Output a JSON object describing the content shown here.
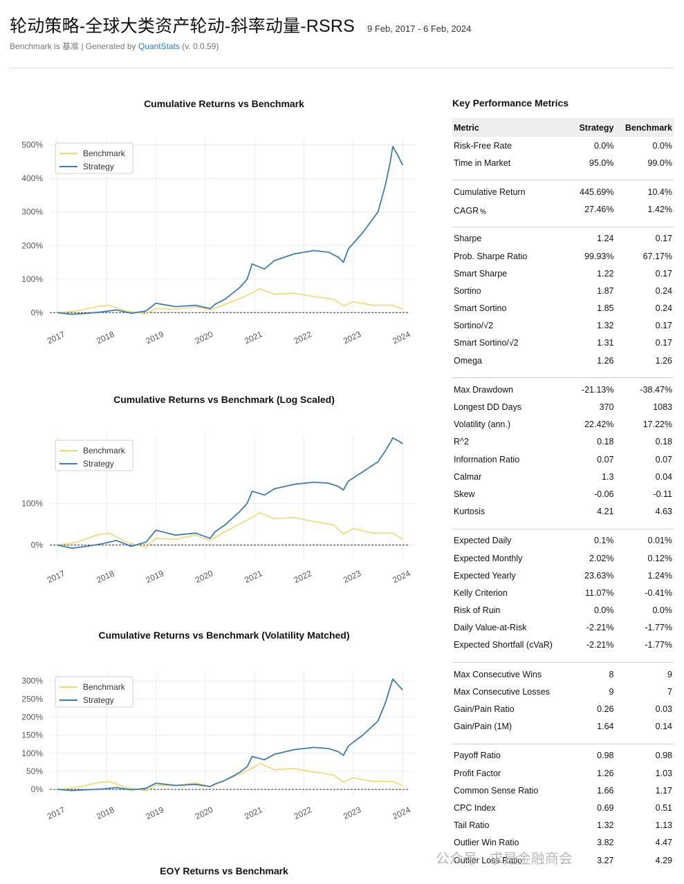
{
  "header": {
    "title": "轮动策略-全球大类资产轮动-斜率动量-RSRS",
    "date_range": "9 Feb, 2017 - 6 Feb, 2024",
    "subtitle_prefix": "Benchmark is 基准 | Generated by ",
    "subtitle_link": "QuantStats",
    "subtitle_suffix": " (v. 0.0.59)"
  },
  "colors": {
    "benchmark": "#f5d76e",
    "strategy": "#3d7ab8"
  },
  "chart_data": [
    {
      "type": "line",
      "title": "Cumulative Returns vs Benchmark",
      "x_ticks": [
        "2017",
        "2018",
        "2019",
        "2020",
        "2021",
        "2022",
        "2023",
        "2024"
      ],
      "y_ticks": [
        "0%",
        "100%",
        "200%",
        "300%",
        "400%",
        "500%"
      ],
      "y_tick_values": [
        0,
        100,
        200,
        300,
        400,
        500
      ],
      "ylim": [
        -20,
        520
      ],
      "legend": [
        "Benchmark",
        "Strategy"
      ],
      "grid": true,
      "series": [
        {
          "name": "Benchmark",
          "points": [
            [
              2017.11,
              0
            ],
            [
              2017.5,
              5
            ],
            [
              2017.9,
              18
            ],
            [
              2018.15,
              22
            ],
            [
              2018.5,
              5
            ],
            [
              2018.9,
              -4
            ],
            [
              2019.1,
              12
            ],
            [
              2019.5,
              10
            ],
            [
              2019.9,
              18
            ],
            [
              2020.2,
              8
            ],
            [
              2020.5,
              25
            ],
            [
              2020.8,
              42
            ],
            [
              2021.1,
              62
            ],
            [
              2021.2,
              72
            ],
            [
              2021.5,
              55
            ],
            [
              2021.9,
              58
            ],
            [
              2022.3,
              48
            ],
            [
              2022.7,
              40
            ],
            [
              2022.9,
              20
            ],
            [
              2023.1,
              32
            ],
            [
              2023.5,
              22
            ],
            [
              2023.9,
              22
            ],
            [
              2024.1,
              10
            ]
          ]
        },
        {
          "name": "Strategy",
          "points": [
            [
              2017.11,
              0
            ],
            [
              2017.4,
              -5
            ],
            [
              2017.7,
              -2
            ],
            [
              2018.0,
              2
            ],
            [
              2018.3,
              8
            ],
            [
              2018.6,
              -2
            ],
            [
              2018.9,
              5
            ],
            [
              2019.1,
              28
            ],
            [
              2019.5,
              18
            ],
            [
              2019.9,
              22
            ],
            [
              2020.2,
              12
            ],
            [
              2020.3,
              25
            ],
            [
              2020.5,
              40
            ],
            [
              2020.8,
              75
            ],
            [
              2020.95,
              100
            ],
            [
              2021.05,
              145
            ],
            [
              2021.3,
              130
            ],
            [
              2021.5,
              155
            ],
            [
              2021.9,
              175
            ],
            [
              2022.3,
              185
            ],
            [
              2022.6,
              180
            ],
            [
              2022.8,
              165
            ],
            [
              2022.9,
              150
            ],
            [
              2023.0,
              190
            ],
            [
              2023.3,
              240
            ],
            [
              2023.6,
              300
            ],
            [
              2023.75,
              380
            ],
            [
              2023.85,
              450
            ],
            [
              2023.9,
              495
            ],
            [
              2024.0,
              470
            ],
            [
              2024.1,
              440
            ]
          ]
        }
      ]
    },
    {
      "type": "line",
      "title": "Cumulative Returns vs Benchmark (Log Scaled)",
      "scale": "log",
      "x_ticks": [
        "2017",
        "2018",
        "2019",
        "2020",
        "2021",
        "2022",
        "2023",
        "2024"
      ],
      "y_ticks": [
        "0%",
        "100%"
      ],
      "y_tick_values": [
        0,
        100
      ],
      "ylim": [
        -20,
        520
      ],
      "legend": [
        "Benchmark",
        "Strategy"
      ],
      "grid": true,
      "series": [
        {
          "name": "Benchmark",
          "points": [
            [
              2017.11,
              0
            ],
            [
              2017.5,
              5
            ],
            [
              2017.9,
              18
            ],
            [
              2018.15,
              22
            ],
            [
              2018.5,
              5
            ],
            [
              2018.9,
              -4
            ],
            [
              2019.1,
              12
            ],
            [
              2019.5,
              10
            ],
            [
              2019.9,
              18
            ],
            [
              2020.2,
              8
            ],
            [
              2020.5,
              25
            ],
            [
              2020.8,
              42
            ],
            [
              2021.1,
              62
            ],
            [
              2021.2,
              72
            ],
            [
              2021.5,
              55
            ],
            [
              2021.9,
              58
            ],
            [
              2022.3,
              48
            ],
            [
              2022.7,
              40
            ],
            [
              2022.9,
              20
            ],
            [
              2023.1,
              32
            ],
            [
              2023.5,
              22
            ],
            [
              2023.9,
              22
            ],
            [
              2024.1,
              10
            ]
          ]
        },
        {
          "name": "Strategy",
          "points": [
            [
              2017.11,
              0
            ],
            [
              2017.4,
              -5
            ],
            [
              2017.7,
              -2
            ],
            [
              2018.0,
              2
            ],
            [
              2018.3,
              8
            ],
            [
              2018.6,
              -2
            ],
            [
              2018.9,
              5
            ],
            [
              2019.1,
              28
            ],
            [
              2019.5,
              18
            ],
            [
              2019.9,
              22
            ],
            [
              2020.2,
              12
            ],
            [
              2020.3,
              25
            ],
            [
              2020.5,
              40
            ],
            [
              2020.8,
              75
            ],
            [
              2020.95,
              100
            ],
            [
              2021.05,
              145
            ],
            [
              2021.3,
              130
            ],
            [
              2021.5,
              155
            ],
            [
              2021.9,
              175
            ],
            [
              2022.3,
              185
            ],
            [
              2022.6,
              180
            ],
            [
              2022.8,
              165
            ],
            [
              2022.9,
              150
            ],
            [
              2023.0,
              190
            ],
            [
              2023.3,
              240
            ],
            [
              2023.6,
              300
            ],
            [
              2023.75,
              380
            ],
            [
              2023.85,
              450
            ],
            [
              2023.9,
              495
            ],
            [
              2024.0,
              470
            ],
            [
              2024.1,
              440
            ]
          ]
        }
      ]
    },
    {
      "type": "line",
      "title": "Cumulative Returns vs Benchmark (Volatility Matched)",
      "x_ticks": [
        "2017",
        "2018",
        "2019",
        "2020",
        "2021",
        "2022",
        "2023",
        "2024"
      ],
      "y_ticks": [
        "0%",
        "50%",
        "100%",
        "150%",
        "200%",
        "250%",
        "300%"
      ],
      "y_tick_values": [
        0,
        50,
        100,
        150,
        200,
        250,
        300
      ],
      "ylim": [
        -15,
        325
      ],
      "legend": [
        "Benchmark",
        "Strategy"
      ],
      "grid": true,
      "series": [
        {
          "name": "Benchmark",
          "points": [
            [
              2017.11,
              0
            ],
            [
              2017.5,
              5
            ],
            [
              2017.9,
              18
            ],
            [
              2018.15,
              22
            ],
            [
              2018.5,
              5
            ],
            [
              2018.9,
              -4
            ],
            [
              2019.1,
              12
            ],
            [
              2019.5,
              10
            ],
            [
              2019.9,
              18
            ],
            [
              2020.2,
              8
            ],
            [
              2020.5,
              25
            ],
            [
              2020.8,
              42
            ],
            [
              2021.1,
              62
            ],
            [
              2021.2,
              72
            ],
            [
              2021.5,
              55
            ],
            [
              2021.9,
              58
            ],
            [
              2022.3,
              48
            ],
            [
              2022.7,
              40
            ],
            [
              2022.9,
              20
            ],
            [
              2023.1,
              32
            ],
            [
              2023.5,
              22
            ],
            [
              2023.9,
              22
            ],
            [
              2024.1,
              10
            ]
          ]
        },
        {
          "name": "Strategy",
          "points": [
            [
              2017.11,
              0
            ],
            [
              2017.4,
              -3
            ],
            [
              2017.7,
              -1
            ],
            [
              2018.0,
              1
            ],
            [
              2018.3,
              5
            ],
            [
              2018.6,
              -1
            ],
            [
              2018.9,
              3
            ],
            [
              2019.1,
              17
            ],
            [
              2019.5,
              11
            ],
            [
              2019.9,
              14
            ],
            [
              2020.2,
              8
            ],
            [
              2020.3,
              15
            ],
            [
              2020.5,
              25
            ],
            [
              2020.8,
              47
            ],
            [
              2020.95,
              63
            ],
            [
              2021.05,
              91
            ],
            [
              2021.3,
              82
            ],
            [
              2021.5,
              97
            ],
            [
              2021.9,
              110
            ],
            [
              2022.3,
              116
            ],
            [
              2022.6,
              113
            ],
            [
              2022.8,
              104
            ],
            [
              2022.9,
              94
            ],
            [
              2023.0,
              120
            ],
            [
              2023.3,
              151
            ],
            [
              2023.6,
              189
            ],
            [
              2023.75,
              239
            ],
            [
              2023.85,
              283
            ],
            [
              2023.9,
              305
            ],
            [
              2024.0,
              290
            ],
            [
              2024.1,
              275
            ]
          ]
        }
      ]
    }
  ],
  "eoy_title": "EOY Returns  vs Benchmark",
  "metrics": {
    "title": "Key Performance Metrics",
    "headers": [
      "Metric",
      "Strategy",
      "Benchmark"
    ],
    "groups": [
      [
        [
          "Risk-Free Rate",
          "0.0%",
          "0.0%"
        ],
        [
          "Time in Market",
          "95.0%",
          "99.0%"
        ]
      ],
      [
        [
          "Cumulative Return",
          "445.69%",
          "10.4%"
        ],
        [
          "CAGR﹪",
          "27.46%",
          "1.42%"
        ]
      ],
      [
        [
          "Sharpe",
          "1.24",
          "0.17"
        ],
        [
          "Prob. Sharpe Ratio",
          "99.93%",
          "67.17%"
        ],
        [
          "Smart Sharpe",
          "1.22",
          "0.17"
        ],
        [
          "Sortino",
          "1.87",
          "0.24"
        ],
        [
          "Smart Sortino",
          "1.85",
          "0.24"
        ],
        [
          "Sortino/√2",
          "1.32",
          "0.17"
        ],
        [
          "Smart Sortino/√2",
          "1.31",
          "0.17"
        ],
        [
          "Omega",
          "1.26",
          "1.26"
        ]
      ],
      [
        [
          "Max Drawdown",
          "-21.13%",
          "-38.47%"
        ],
        [
          "Longest DD Days",
          "370",
          "1083"
        ],
        [
          "Volatility (ann.)",
          "22.42%",
          "17.22%"
        ],
        [
          "R^2",
          "0.18",
          "0.18"
        ],
        [
          "Information Ratio",
          "0.07",
          "0.07"
        ],
        [
          "Calmar",
          "1.3",
          "0.04"
        ],
        [
          "Skew",
          "-0.06",
          "-0.11"
        ],
        [
          "Kurtosis",
          "4.21",
          "4.63"
        ]
      ],
      [
        [
          "Expected Daily",
          "0.1%",
          "0.01%"
        ],
        [
          "Expected Monthly",
          "2.02%",
          "0.12%"
        ],
        [
          "Expected Yearly",
          "23.63%",
          "1.24%"
        ],
        [
          "Kelly Criterion",
          "11.07%",
          "-0.41%"
        ],
        [
          "Risk of Ruin",
          "0.0%",
          "0.0%"
        ],
        [
          "Daily Value-at-Risk",
          "-2.21%",
          "-1.77%"
        ],
        [
          "Expected Shortfall (cVaR)",
          "-2.21%",
          "-1.77%"
        ]
      ],
      [
        [
          "Max Consecutive Wins",
          "8",
          "9"
        ],
        [
          "Max Consecutive Losses",
          "9",
          "7"
        ],
        [
          "Gain/Pain Ratio",
          "0.26",
          "0.03"
        ],
        [
          "Gain/Pain (1M)",
          "1.64",
          "0.14"
        ]
      ],
      [
        [
          "Payoff Ratio",
          "0.98",
          "0.98"
        ],
        [
          "Profit Factor",
          "1.26",
          "1.03"
        ],
        [
          "Common Sense Ratio",
          "1.66",
          "1.17"
        ],
        [
          "CPC Index",
          "0.69",
          "0.51"
        ],
        [
          "Tail Ratio",
          "1.32",
          "1.13"
        ],
        [
          "Outlier Win Ratio",
          "3.82",
          "4.47"
        ],
        [
          "Outlier Loss Ratio",
          "3.27",
          "4.29"
        ]
      ]
    ]
  },
  "watermark": "公众号 · 求是金融商会"
}
